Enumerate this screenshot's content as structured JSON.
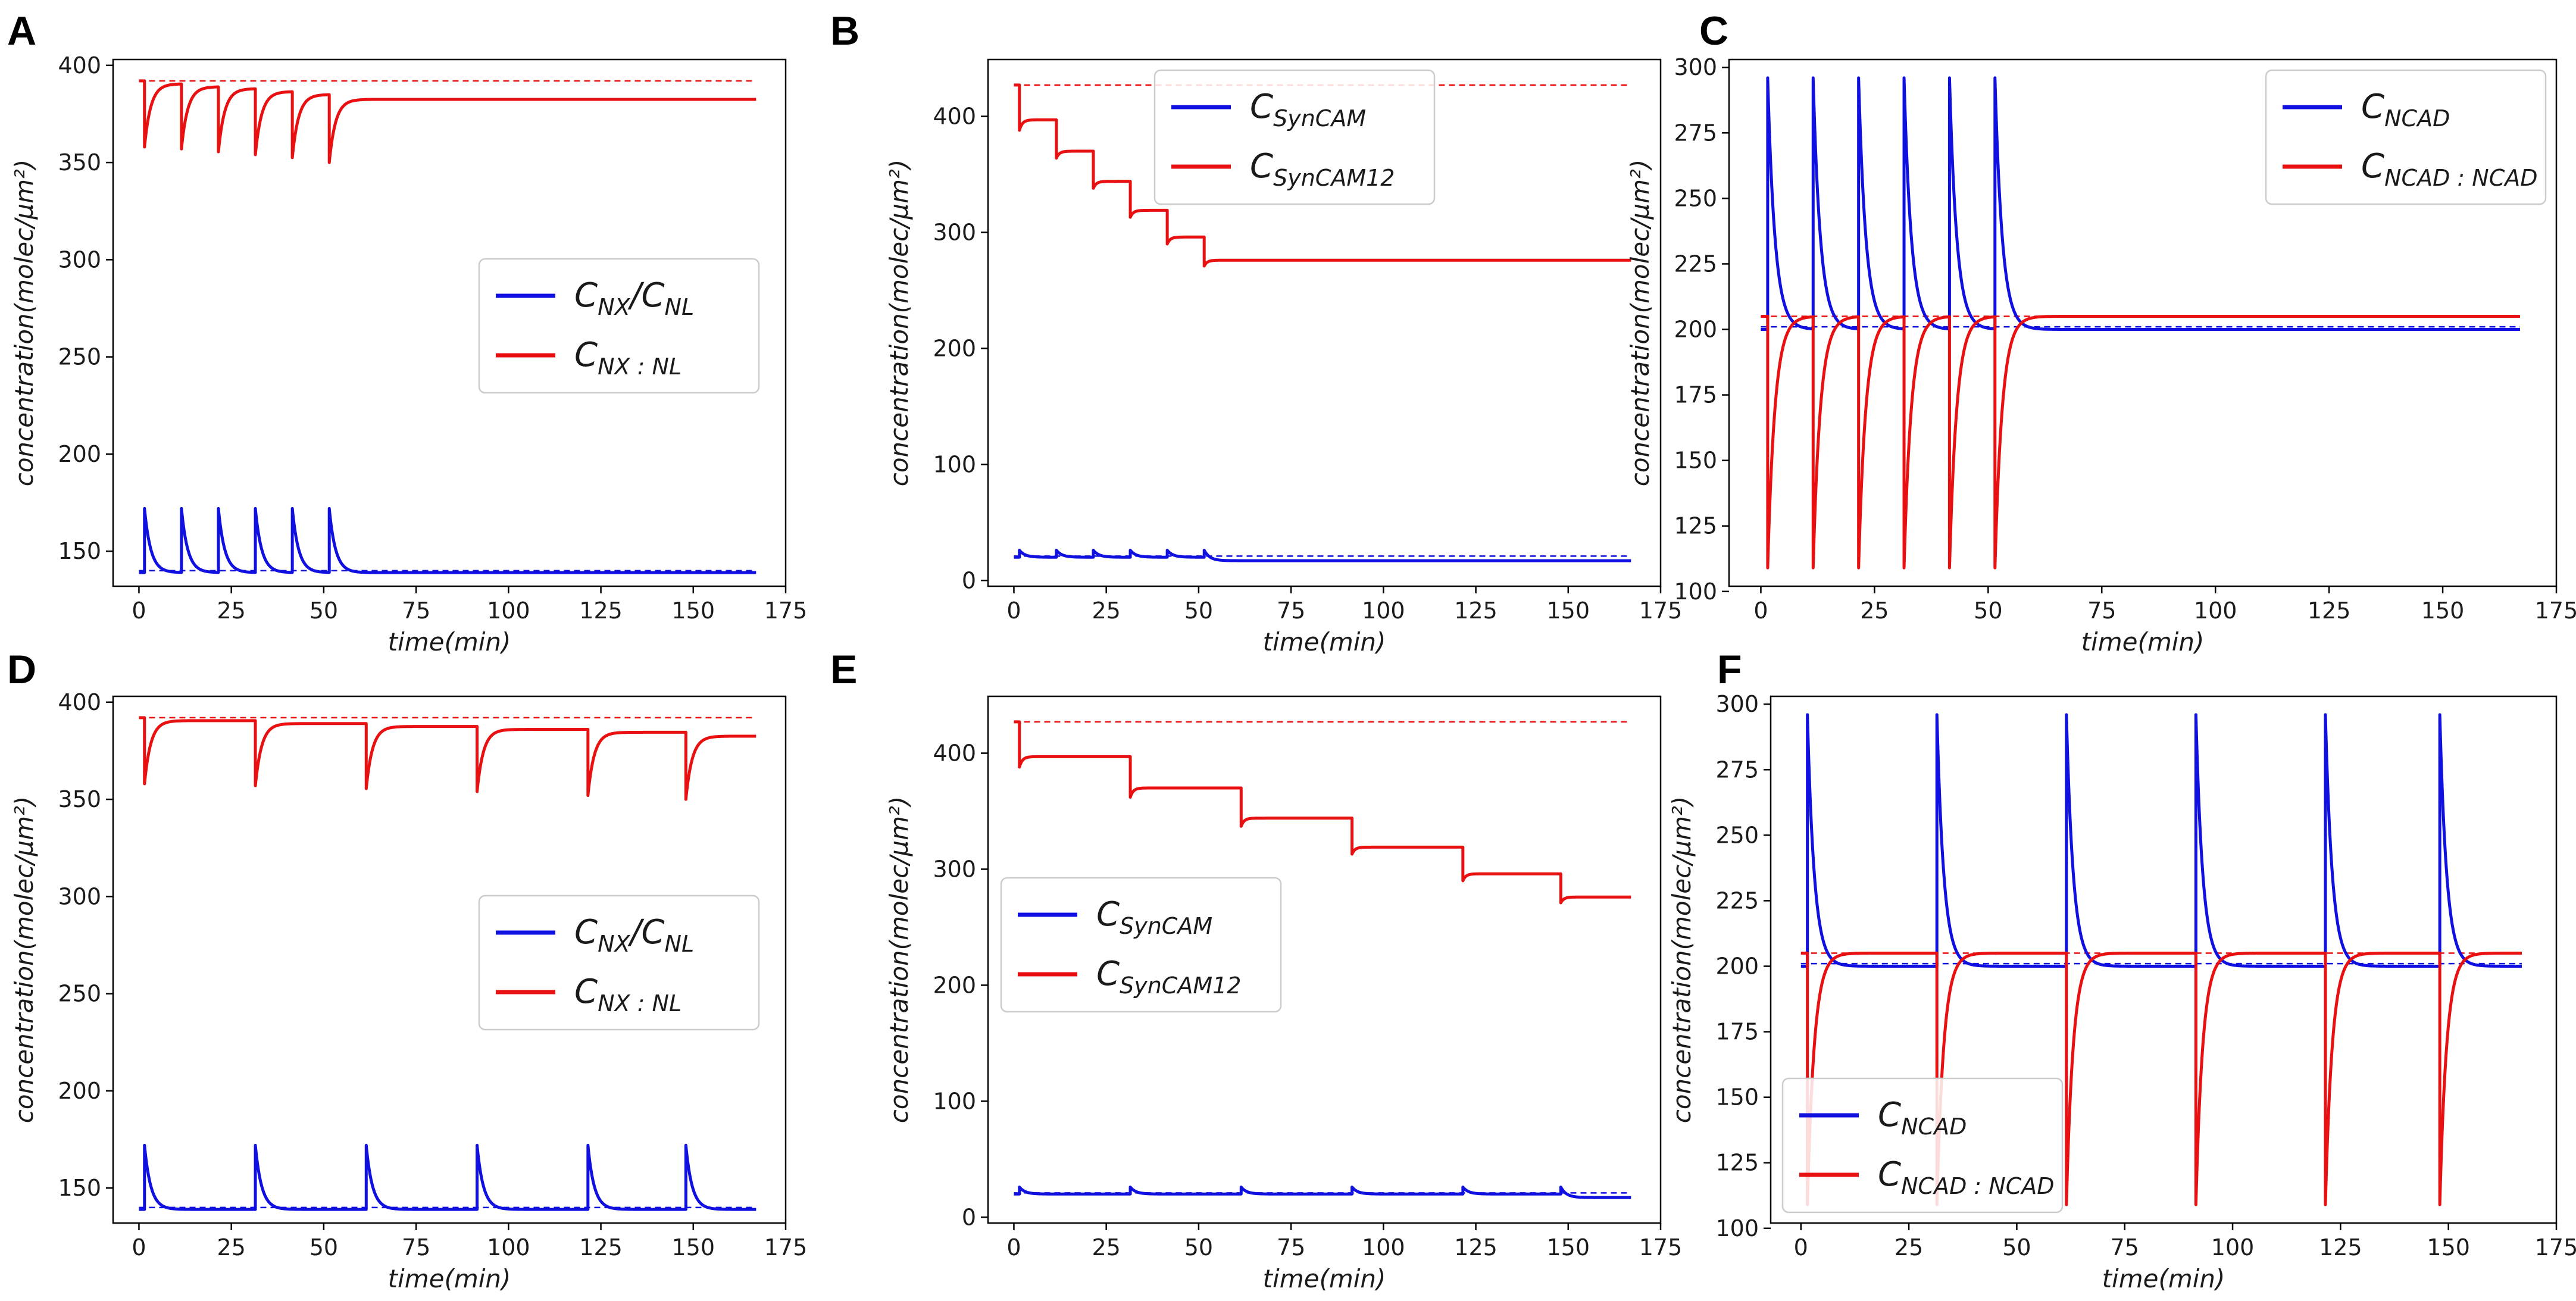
{
  "colors": {
    "blue": "#1010e0",
    "red": "#e81010"
  },
  "chart_data": [
    {
      "id": "A",
      "letter": "A",
      "type": "line",
      "xlim": [
        -7,
        175
      ],
      "ylim": [
        132,
        403
      ],
      "xticks": [
        0,
        25,
        50,
        75,
        100,
        125,
        150,
        175
      ],
      "yticks": [
        150,
        200,
        250,
        300,
        350,
        400
      ],
      "xlabel": "time(min)",
      "ylabel": "concentration(molec/μm²)",
      "legend_position": "center-right",
      "series": [
        {
          "name": "C_NX/C_NL",
          "main": "C",
          "sub": "NX",
          "mid": "/C",
          "sub2": "NL",
          "color": "#1010e0",
          "kind": "spike",
          "start": 0,
          "end": 167,
          "pulses": [
            1.5,
            11.5,
            21.5,
            31.5,
            41.5,
            51.5
          ],
          "baseline": 139,
          "peak": 172,
          "settle": 139,
          "tau": 1.7
        },
        {
          "name": "C_NX:NL",
          "main": "C",
          "sub": "NX : NL",
          "color": "#e81010",
          "kind": "dip",
          "start": 0,
          "end": 167,
          "pulses": [
            1.5,
            11.5,
            21.5,
            31.5,
            41.5,
            51.5
          ],
          "start_value": 392,
          "plateaus": [
            390.5,
            389,
            388,
            386.5,
            385,
            382.5
          ],
          "mins": [
            358,
            357,
            355.5,
            354,
            352.5,
            350
          ],
          "tau": 1.7
        }
      ],
      "reference_lines": [
        {
          "value": 392,
          "color": "#e81010"
        },
        {
          "value": 140,
          "color": "#1010e0"
        }
      ]
    },
    {
      "id": "B",
      "letter": "B",
      "type": "line",
      "xlim": [
        -7,
        175
      ],
      "ylim": [
        -5,
        449
      ],
      "xticks": [
        0,
        25,
        50,
        75,
        100,
        125,
        150,
        175
      ],
      "yticks": [
        0,
        100,
        200,
        300,
        400
      ],
      "xlabel": "time(min)",
      "ylabel": "concentration(molec/μm²)",
      "legend_position": "upper-center",
      "series": [
        {
          "name": "C_SynCAM",
          "main": "C",
          "sub": "SynCAM",
          "color": "#1010e0",
          "kind": "spike",
          "start": 0,
          "end": 167,
          "pulses": [
            1.5,
            11.5,
            21.5,
            31.5,
            41.5,
            51.5
          ],
          "baseline": 20,
          "peak": 26,
          "settle": 17,
          "tau": 1.5
        },
        {
          "name": "C_SynCAM12",
          "main": "C",
          "sub": "SynCAM12",
          "color": "#e81010",
          "kind": "step",
          "start": 0,
          "end": 167,
          "pulses": [
            1.5,
            11.5,
            21.5,
            31.5,
            41.5,
            51.5
          ],
          "start_value": 427,
          "plateaus": [
            397,
            370,
            344,
            319,
            296,
            276
          ],
          "mins": [
            388,
            364,
            338,
            313,
            290,
            271
          ],
          "tau": 0.8
        }
      ],
      "reference_lines": [
        {
          "value": 427,
          "color": "#e81010"
        },
        {
          "value": 21,
          "color": "#1010e0"
        }
      ]
    },
    {
      "id": "C",
      "letter": "C",
      "type": "line",
      "xlim": [
        -7,
        175
      ],
      "ylim": [
        102,
        303
      ],
      "xticks": [
        0,
        25,
        50,
        75,
        100,
        125,
        150,
        175
      ],
      "yticks": [
        100,
        125,
        150,
        175,
        200,
        225,
        250,
        275,
        300
      ],
      "xlabel": "time(min)",
      "ylabel": "concentration(molec/μm²)",
      "legend_position": "upper-right",
      "series": [
        {
          "name": "C_NCAD",
          "main": "C",
          "sub": "NCAD",
          "color": "#1010e0",
          "kind": "spike",
          "start": 0,
          "end": 167,
          "pulses": [
            1.5,
            11.5,
            21.5,
            31.5,
            41.5,
            51.5
          ],
          "baseline": 200,
          "peak": 296,
          "settle": 200,
          "tau": 1.6
        },
        {
          "name": "C_NCAD:NCAD",
          "main": "C",
          "sub": "NCAD : NCAD",
          "color": "#e81010",
          "kind": "dip",
          "start": 0,
          "end": 167,
          "pulses": [
            1.5,
            11.5,
            21.5,
            31.5,
            41.5,
            51.5
          ],
          "start_value": 205,
          "plateaus": [
            205,
            205,
            205,
            205,
            205,
            205
          ],
          "mins": [
            109,
            109,
            109,
            109,
            109,
            109
          ],
          "tau": 1.6
        }
      ],
      "reference_lines": [
        {
          "value": 205,
          "color": "#e81010"
        },
        {
          "value": 201,
          "color": "#1010e0"
        }
      ]
    },
    {
      "id": "D",
      "letter": "D",
      "type": "line",
      "xlim": [
        -7,
        175
      ],
      "ylim": [
        132,
        403
      ],
      "xticks": [
        0,
        25,
        50,
        75,
        100,
        125,
        150,
        175
      ],
      "yticks": [
        150,
        200,
        250,
        300,
        350,
        400
      ],
      "xlabel": "time(min)",
      "ylabel": "concentration(molec/μm²)",
      "legend_position": "center-right",
      "series": [
        {
          "name": "C_NX/C_NL",
          "main": "C",
          "sub": "NX",
          "mid": "/C",
          "sub2": "NL",
          "color": "#1010e0",
          "kind": "spike",
          "start": 0,
          "end": 167,
          "pulses": [
            1.5,
            31.5,
            61.5,
            91.5,
            121.5,
            148
          ],
          "baseline": 139,
          "peak": 172,
          "settle": 139,
          "tau": 1.7
        },
        {
          "name": "C_NX:NL",
          "main": "C",
          "sub": "NX : NL",
          "color": "#e81010",
          "kind": "dip",
          "start": 0,
          "end": 167,
          "pulses": [
            1.5,
            31.5,
            61.5,
            91.5,
            121.5,
            148
          ],
          "start_value": 392,
          "plateaus": [
            390.5,
            389,
            387.5,
            386,
            384.5,
            382.5
          ],
          "mins": [
            358,
            357,
            355.5,
            354,
            352,
            350
          ],
          "tau": 1.7
        }
      ],
      "reference_lines": [
        {
          "value": 392,
          "color": "#e81010"
        },
        {
          "value": 140,
          "color": "#1010e0"
        }
      ]
    },
    {
      "id": "E",
      "letter": "E",
      "type": "line",
      "xlim": [
        -7,
        175
      ],
      "ylim": [
        -5,
        449
      ],
      "xticks": [
        0,
        25,
        50,
        75,
        100,
        125,
        150,
        175
      ],
      "yticks": [
        0,
        100,
        200,
        300,
        400
      ],
      "xlabel": "time(min)",
      "ylabel": "concentration(molec/μm²)",
      "legend_position": "center-left",
      "series": [
        {
          "name": "C_SynCAM",
          "main": "C",
          "sub": "SynCAM",
          "color": "#1010e0",
          "kind": "spike",
          "start": 0,
          "end": 167,
          "pulses": [
            1.5,
            31.5,
            61.5,
            91.5,
            121.5,
            148
          ],
          "baseline": 20,
          "peak": 26,
          "settle": 17,
          "tau": 1.5
        },
        {
          "name": "C_SynCAM12",
          "main": "C",
          "sub": "SynCAM12",
          "color": "#e81010",
          "kind": "step",
          "start": 0,
          "end": 167,
          "pulses": [
            1.5,
            31.5,
            61.5,
            91.5,
            121.5,
            148
          ],
          "start_value": 427,
          "plateaus": [
            397,
            370,
            344,
            319,
            296,
            276
          ],
          "mins": [
            388,
            362,
            337,
            313,
            290,
            271
          ],
          "tau": 0.8
        }
      ],
      "reference_lines": [
        {
          "value": 427,
          "color": "#e81010"
        },
        {
          "value": 21,
          "color": "#1010e0"
        }
      ]
    },
    {
      "id": "F",
      "letter": "F",
      "type": "line",
      "xlim": [
        -7,
        175
      ],
      "ylim": [
        102,
        303
      ],
      "xticks": [
        0,
        25,
        50,
        75,
        100,
        125,
        150,
        175
      ],
      "yticks": [
        100,
        125,
        150,
        175,
        200,
        225,
        250,
        275,
        300
      ],
      "xlabel": "time(min)",
      "ylabel": "concentration(molec/μm²)",
      "legend_position": "lower-left",
      "series": [
        {
          "name": "C_NCAD",
          "main": "C",
          "sub": "NCAD",
          "color": "#1010e0",
          "kind": "spike",
          "start": 0,
          "end": 167,
          "pulses": [
            1.5,
            31.5,
            61.5,
            91.5,
            121.5,
            148
          ],
          "baseline": 200,
          "peak": 296,
          "settle": 200,
          "tau": 1.6
        },
        {
          "name": "C_NCAD:NCAD",
          "main": "C",
          "sub": "NCAD : NCAD",
          "color": "#e81010",
          "kind": "dip",
          "start": 0,
          "end": 167,
          "pulses": [
            1.5,
            31.5,
            61.5,
            91.5,
            121.5,
            148
          ],
          "start_value": 205,
          "plateaus": [
            205,
            205,
            205,
            205,
            205,
            205
          ],
          "mins": [
            109,
            109,
            109,
            109,
            109,
            109
          ],
          "tau": 1.6
        }
      ],
      "reference_lines": [
        {
          "value": 205,
          "color": "#e81010"
        },
        {
          "value": 201,
          "color": "#1010e0"
        }
      ]
    }
  ]
}
